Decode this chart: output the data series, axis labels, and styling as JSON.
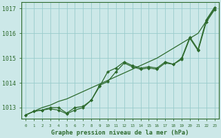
{
  "title": "Graphe pression niveau de la mer (hPa)",
  "xlabel_hours": [
    0,
    1,
    2,
    3,
    4,
    5,
    6,
    7,
    8,
    9,
    10,
    11,
    12,
    13,
    14,
    15,
    16,
    17,
    18,
    19,
    20,
    21,
    22,
    23
  ],
  "line_smooth": [
    1012.7,
    1012.85,
    1013.0,
    1013.1,
    1013.25,
    1013.35,
    1013.5,
    1013.65,
    1013.8,
    1013.95,
    1014.1,
    1014.25,
    1014.4,
    1014.55,
    1014.7,
    1014.85,
    1015.0,
    1015.2,
    1015.4,
    1015.6,
    1015.8,
    1016.0,
    1016.5,
    1017.0
  ],
  "line_zigzag": [
    1012.7,
    1012.85,
    1012.9,
    1012.95,
    1012.9,
    1012.75,
    1012.9,
    1013.0,
    1013.3,
    1013.85,
    1014.45,
    1014.6,
    1014.85,
    1014.7,
    1014.6,
    1014.65,
    1014.6,
    1014.85,
    1014.75,
    1015.0,
    1015.85,
    1015.35,
    1016.55,
    1017.05
  ],
  "line_upper": [
    1012.7,
    1012.85,
    1012.9,
    1013.0,
    1013.0,
    1012.78,
    1013.0,
    1013.05,
    1013.3,
    1013.9,
    1014.05,
    1014.45,
    1014.8,
    1014.65,
    1014.55,
    1014.6,
    1014.55,
    1014.8,
    1014.75,
    1014.95,
    1015.8,
    1015.3,
    1016.45,
    1016.95
  ],
  "line_color": "#2d6a2d",
  "bg_color": "#cce8e8",
  "grid_color": "#99cccc",
  "ylim": [
    1012.55,
    1017.25
  ],
  "yticks": [
    1013,
    1014,
    1015,
    1016,
    1017
  ]
}
